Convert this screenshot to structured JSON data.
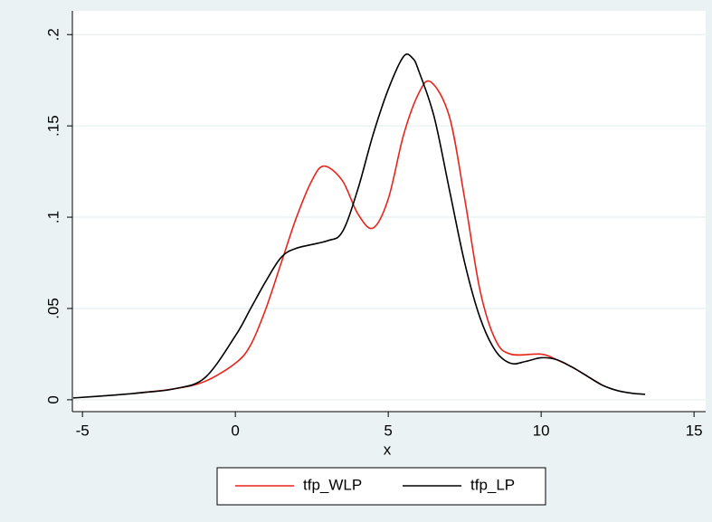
{
  "chart_data": {
    "type": "line",
    "x_label": "x",
    "xlim": [
      -5.33,
      15.38
    ],
    "xticks": [
      -5,
      0,
      5,
      10,
      15
    ],
    "ylim": [
      -0.0065,
      0.213
    ],
    "yticks": [
      0,
      {
        "value": 0.05,
        "label": ".05"
      },
      {
        "value": 0.1,
        "label": ".1"
      },
      {
        "value": 0.15,
        "label": ".15"
      },
      {
        "value": 0.2,
        "label": ".2"
      }
    ],
    "grid": true,
    "legend": "bottom",
    "series": [
      {
        "name": "tfp_WLP",
        "color": "#e8251c",
        "x": [
          -3.3,
          -2,
          -1,
          0,
          0.5,
          1,
          1.5,
          2,
          2.5,
          2.9,
          3.5,
          4,
          4.5,
          5,
          5.5,
          6,
          6.4,
          7,
          7.5,
          8,
          8.5,
          9,
          10,
          10.5,
          11,
          11.5,
          12
        ],
        "values": [
          0.0035,
          0.006,
          0.01,
          0.02,
          0.03,
          0.05,
          0.075,
          0.1,
          0.12,
          0.128,
          0.12,
          0.102,
          0.094,
          0.11,
          0.145,
          0.168,
          0.174,
          0.155,
          0.11,
          0.06,
          0.033,
          0.025,
          0.025,
          0.022,
          0.018,
          0.013,
          0.008
        ]
      },
      {
        "name": "tfp_LP",
        "color": "#000000",
        "x": [
          -5.3,
          -4,
          -3,
          -2,
          -1,
          0,
          0.5,
          1,
          1.5,
          2,
          3,
          3.5,
          4,
          4.5,
          5,
          5.5,
          5.8,
          6,
          6.5,
          7,
          7.5,
          8,
          8.5,
          9,
          9.5,
          10,
          10.5,
          11,
          11.5,
          12,
          12.5,
          13,
          13.4
        ],
        "values": [
          0.001,
          0.0025,
          0.004,
          0.006,
          0.012,
          0.035,
          0.05,
          0.065,
          0.078,
          0.083,
          0.087,
          0.092,
          0.115,
          0.145,
          0.17,
          0.188,
          0.187,
          0.18,
          0.155,
          0.115,
          0.075,
          0.045,
          0.027,
          0.02,
          0.021,
          0.023,
          0.022,
          0.018,
          0.013,
          0.008,
          0.005,
          0.0035,
          0.003
        ]
      }
    ]
  }
}
